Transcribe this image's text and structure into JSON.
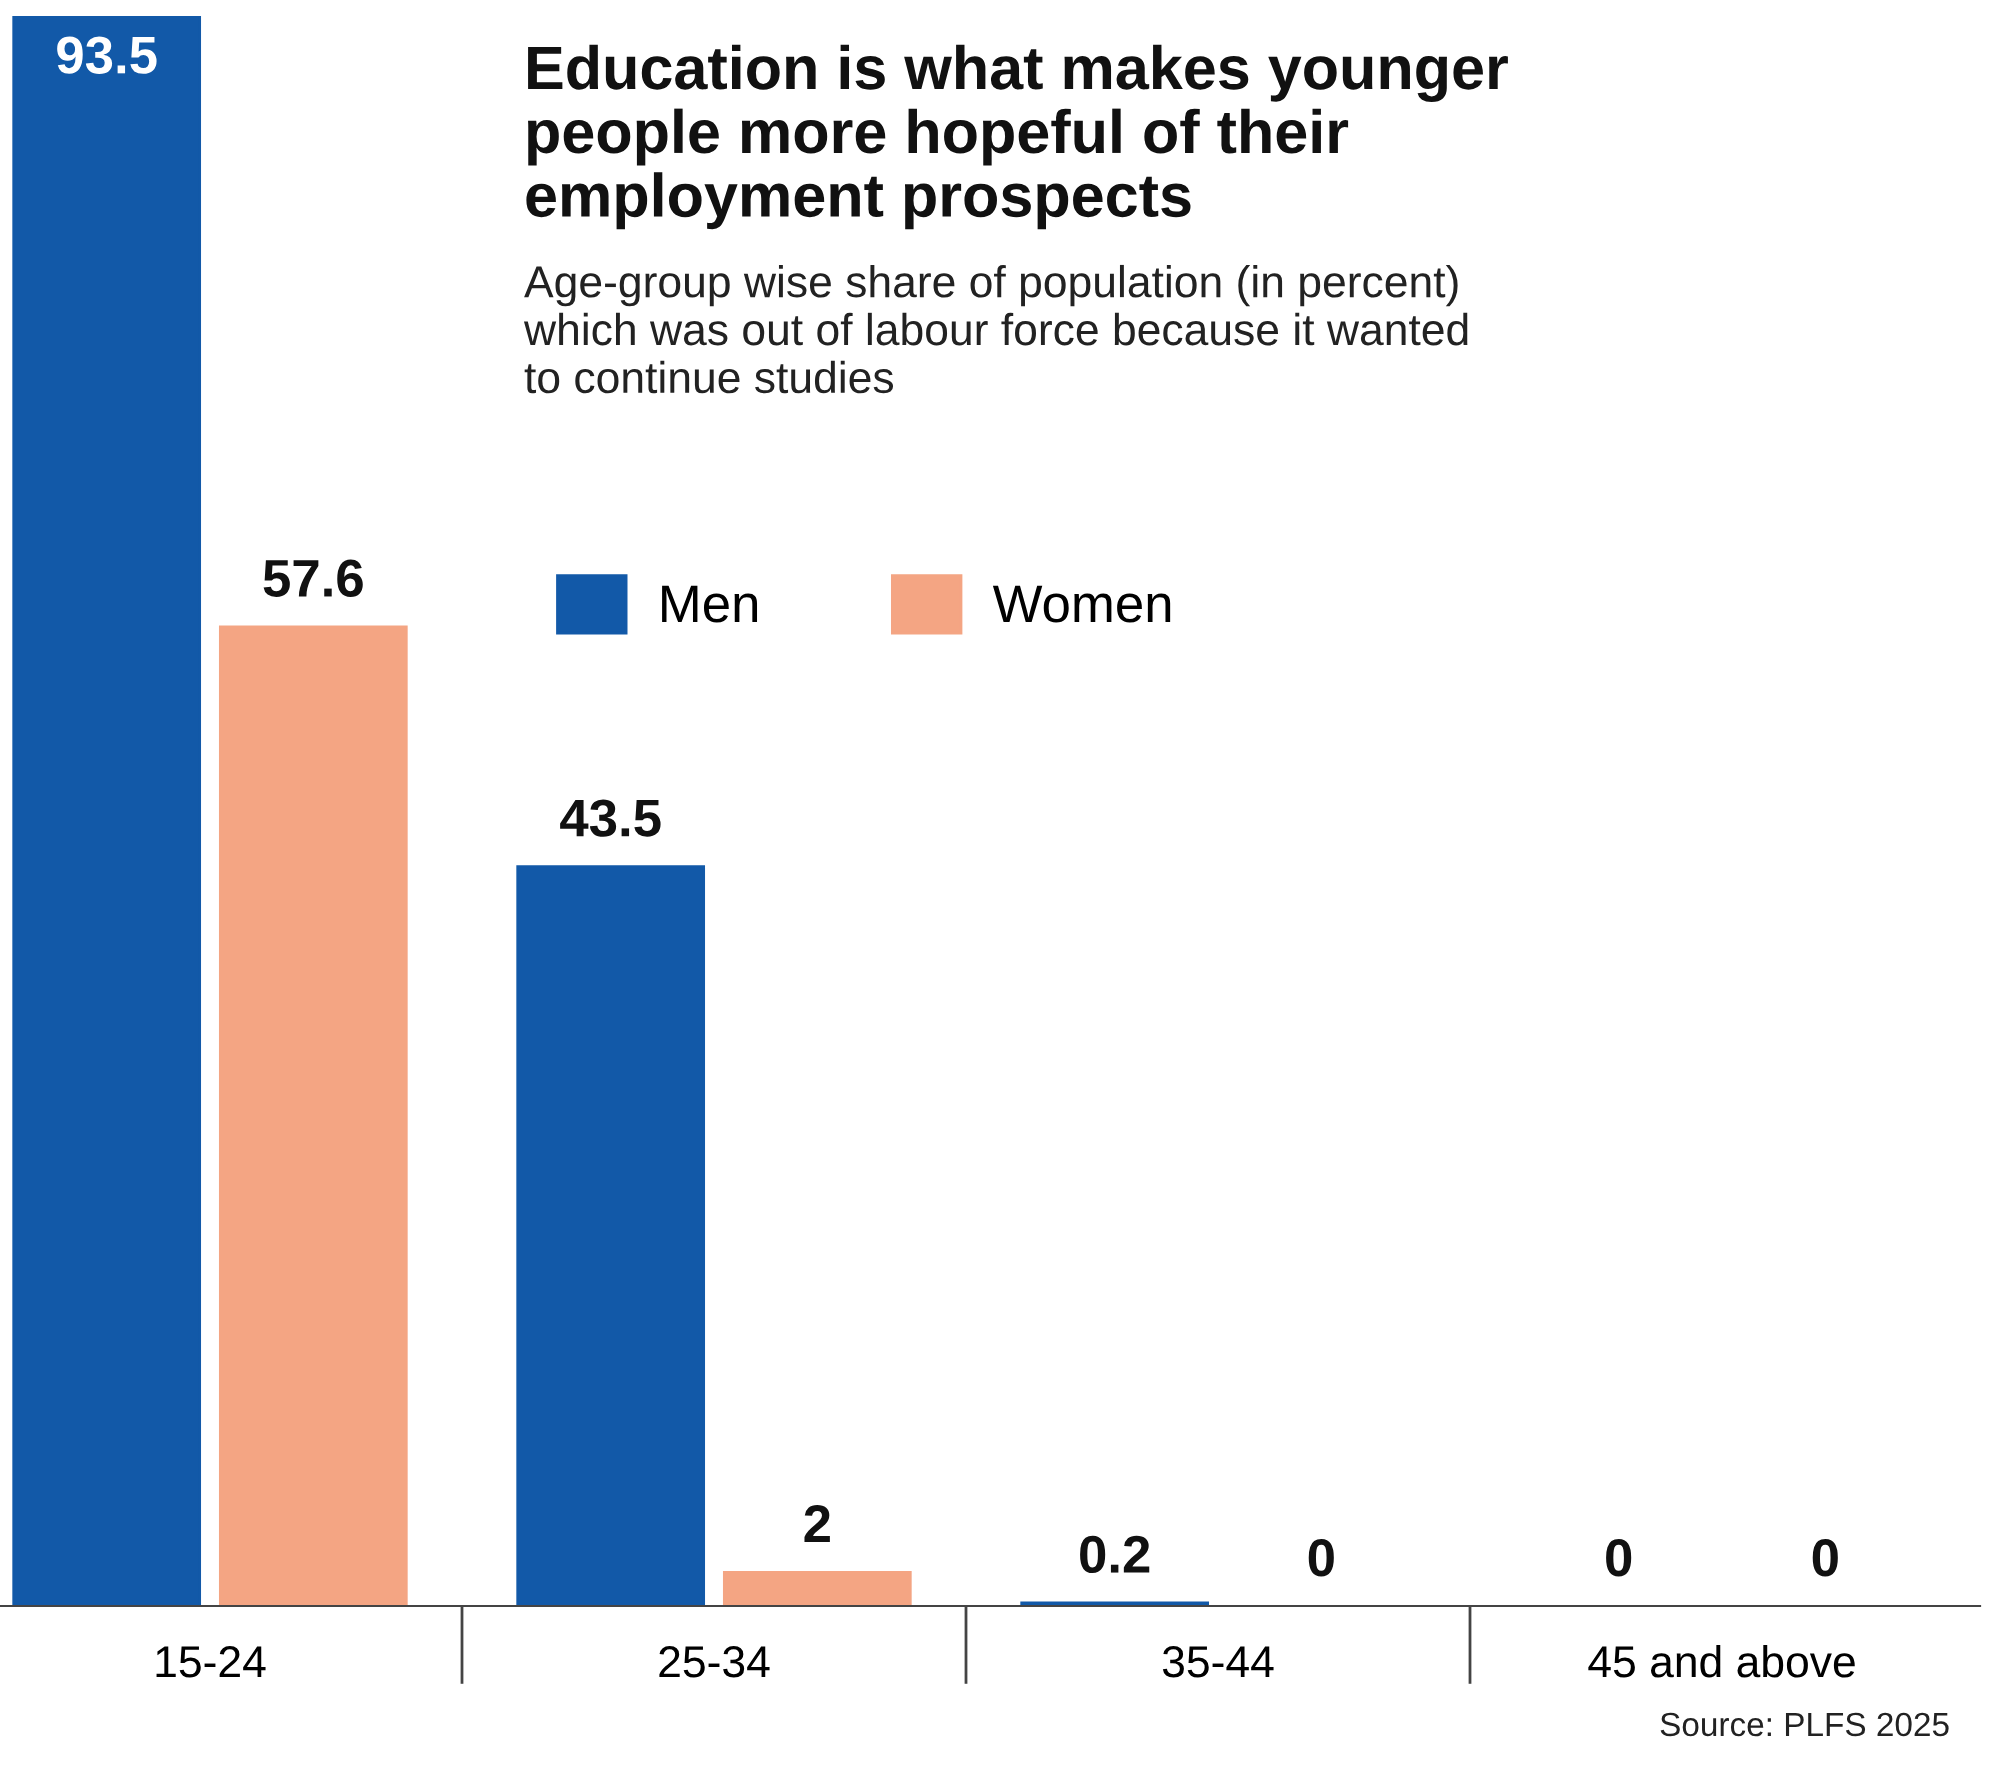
{
  "chart_data": {
    "type": "bar",
    "title": "Education is what makes younger\npeople more hopeful of their\nemployment prospects",
    "subtitle": "Age-group wise share of population (in percent)\nwhich was out of labour force because it wanted\nto continue studies",
    "categories": [
      "15-24",
      "25-34",
      "35-44",
      "45 and above"
    ],
    "series": [
      {
        "name": "Men",
        "color": "#1259a8",
        "values": [
          93.5,
          43.5,
          0.2,
          0
        ]
      },
      {
        "name": "Women",
        "color": "#f4a583",
        "values": [
          57.6,
          2,
          0,
          0
        ]
      }
    ],
    "data_labels": true,
    "legend": "top",
    "grid": false,
    "annotations": [
      "Source: PLFS 2025"
    ]
  }
}
